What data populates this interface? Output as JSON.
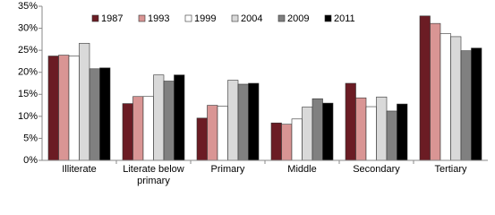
{
  "chart_data": {
    "type": "bar",
    "categories": [
      "Illiterate",
      "Literate below primary",
      "Primary",
      "Middle",
      "Secondary",
      "Tertiary"
    ],
    "series": [
      {
        "name": "1987",
        "color": "#6b1c24",
        "values": [
          23.7,
          12.9,
          9.6,
          8.5,
          17.5,
          32.8
        ]
      },
      {
        "name": "1993",
        "color": "#d99594",
        "values": [
          23.9,
          14.5,
          12.5,
          8.2,
          14.2,
          31.1
        ]
      },
      {
        "name": "1999",
        "color": "#ffffff",
        "values": [
          23.7,
          14.5,
          12.3,
          9.4,
          12.2,
          28.8
        ]
      },
      {
        "name": "2004",
        "color": "#d9d9d9",
        "values": [
          26.6,
          19.4,
          18.2,
          12.1,
          14.4,
          28.1
        ]
      },
      {
        "name": "2009",
        "color": "#808080",
        "values": [
          20.8,
          18.0,
          17.3,
          14.0,
          11.2,
          24.9
        ]
      },
      {
        "name": "2011",
        "color": "#000000",
        "values": [
          21.0,
          19.4,
          17.5,
          13.0,
          12.8,
          25.5
        ]
      }
    ],
    "ylim": [
      0,
      35
    ],
    "yticks": [
      {
        "value": 0,
        "label": "0%"
      },
      {
        "value": 5,
        "label": "5%"
      },
      {
        "value": 10,
        "label": "10%"
      },
      {
        "value": 15,
        "label": "15%"
      },
      {
        "value": 20,
        "label": "20%"
      },
      {
        "value": 25,
        "label": "25%"
      },
      {
        "value": 30,
        "label": "30%"
      },
      {
        "value": 35,
        "label": "35%"
      }
    ],
    "grid": false,
    "legend": "top"
  }
}
